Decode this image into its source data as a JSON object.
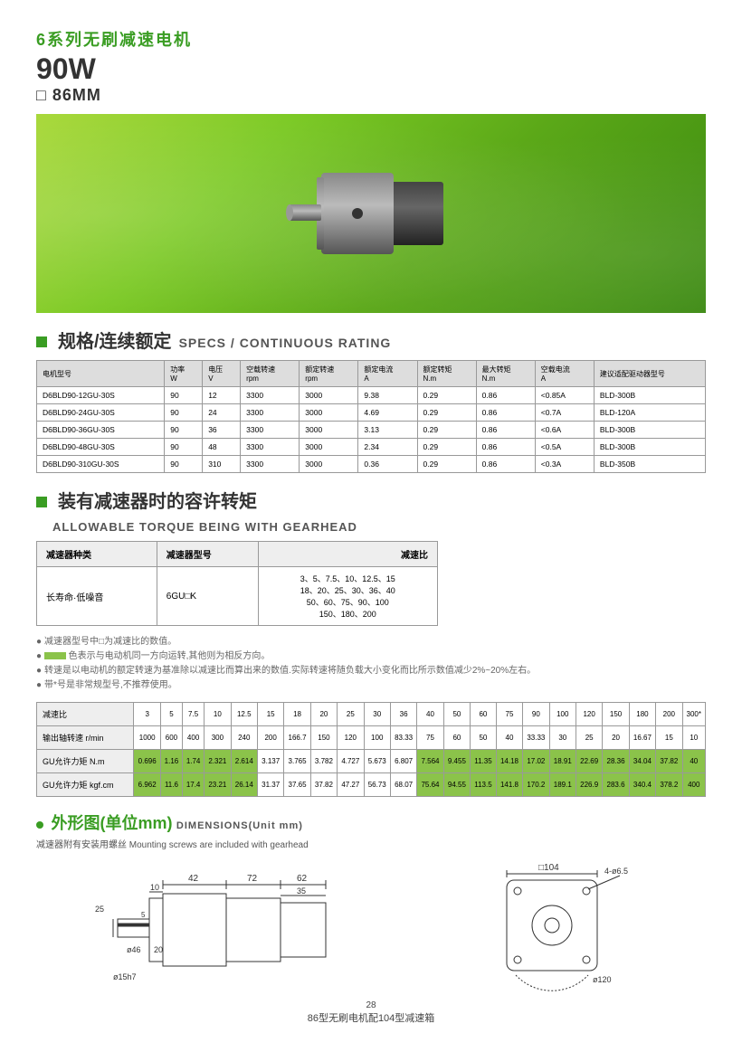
{
  "header": {
    "series": "6系列无刷减速电机",
    "power": "90W",
    "size": "□ 86MM"
  },
  "specs": {
    "title_cn": "规格/连续额定",
    "title_en": "SPECS / CONTINUOUS RATING",
    "columns": [
      "电机型号",
      "功率\nW",
      "电压\nV",
      "空载转速\nrpm",
      "额定转速\nrpm",
      "额定电流\nA",
      "额定转矩\nN.m",
      "最大转矩\nN.m",
      "空载电流\nA",
      "建议适配驱动器型号"
    ],
    "rows": [
      [
        "D6BLD90-12GU-30S",
        "90",
        "12",
        "3300",
        "3000",
        "9.38",
        "0.29",
        "0.86",
        "<0.85A",
        "BLD-300B"
      ],
      [
        "D6BLD90-24GU-30S",
        "90",
        "24",
        "3300",
        "3000",
        "4.69",
        "0.29",
        "0.86",
        "<0.7A",
        "BLD-120A"
      ],
      [
        "D6BLD90-36GU-30S",
        "90",
        "36",
        "3300",
        "3000",
        "3.13",
        "0.29",
        "0.86",
        "<0.6A",
        "BLD-300B"
      ],
      [
        "D6BLD90-48GU-30S",
        "90",
        "48",
        "3300",
        "3000",
        "2.34",
        "0.29",
        "0.86",
        "<0.5A",
        "BLD-300B"
      ],
      [
        "D6BLD90-310GU-30S",
        "90",
        "310",
        "3300",
        "3000",
        "0.36",
        "0.29",
        "0.86",
        "<0.3A",
        "BLD-350B"
      ]
    ]
  },
  "torque": {
    "title_cn": "装有减速器时的容许转矩",
    "title_en": "ALLOWABLE TORQUE BEING WITH GEARHEAD",
    "h1": "减速器种类",
    "h2": "减速器型号",
    "h3": "减速比",
    "v1": "长寿命·低噪音",
    "v2": "6GU□K",
    "v3": "3、5、7.5、10、12.5、15\n18、20、25、30、36、40\n50、60、75、90、100\n150、180、200"
  },
  "notes": {
    "n1": "减速器型号中□为减速比的数值。",
    "n2a": "色表示与电动机同一方向运转,其他则为相反方向。",
    "n3": "转速是以电动机的额定转速为基准除以减速比而算出来的数值.实际转速将随负载大小变化而比所示数值减少2%~20%左右。",
    "n4": "带*号是非常规型号,不推荐使用。"
  },
  "ratio": {
    "labels": [
      "减速比",
      "输出轴转速 r/min",
      "GU允许力矩 N.m",
      "GU允许力矩 kgf.cm"
    ],
    "ratios": [
      "3",
      "5",
      "7.5",
      "10",
      "12.5",
      "15",
      "18",
      "20",
      "25",
      "30",
      "36",
      "40",
      "50",
      "60",
      "75",
      "90",
      "100",
      "120",
      "150",
      "180",
      "200",
      "300*"
    ],
    "rpm": [
      "1000",
      "600",
      "400",
      "300",
      "240",
      "200",
      "166.7",
      "150",
      "120",
      "100",
      "83.33",
      "75",
      "60",
      "50",
      "40",
      "33.33",
      "30",
      "25",
      "20",
      "16.67",
      "15",
      "10"
    ],
    "nm": [
      "0.696",
      "1.16",
      "1.74",
      "2.321",
      "2.614",
      "3.137",
      "3.765",
      "3.782",
      "4.727",
      "5.673",
      "6.807",
      "7.564",
      "9.455",
      "11.35",
      "14.18",
      "17.02",
      "18.91",
      "22.69",
      "28.36",
      "34.04",
      "37.82",
      "40"
    ],
    "kgf": [
      "6.962",
      "11.6",
      "17.4",
      "23.21",
      "26.14",
      "31.37",
      "37.65",
      "37.82",
      "47.27",
      "56.73",
      "68.07",
      "75.64",
      "94.55",
      "113.5",
      "141.8",
      "170.2",
      "189.1",
      "226.9",
      "283.6",
      "340.4",
      "378.2",
      "400"
    ],
    "hl_from": 11
  },
  "dims": {
    "title_cn": "外形图(单位mm)",
    "title_en": "DIMENSIONS(Unit mm)",
    "note": "减速器附有安装用螺丝 Mounting screws are included with gearhead",
    "d1": {
      "a": "42",
      "b": "72",
      "c": "62",
      "d": "10",
      "e": "35",
      "f": "25",
      "g": "ø46",
      "h": "20",
      "i": "ø15h7",
      "j": "5"
    },
    "d2": {
      "a": "□104",
      "b": "4-ø6.5",
      "c": "ø120"
    }
  },
  "footer": {
    "page": "28",
    "text": "86型无刷电机配104型减速箱"
  },
  "colors": {
    "green": "#3a9d23",
    "hl": "#8bc34a",
    "bg_hero": "#7bc924"
  }
}
